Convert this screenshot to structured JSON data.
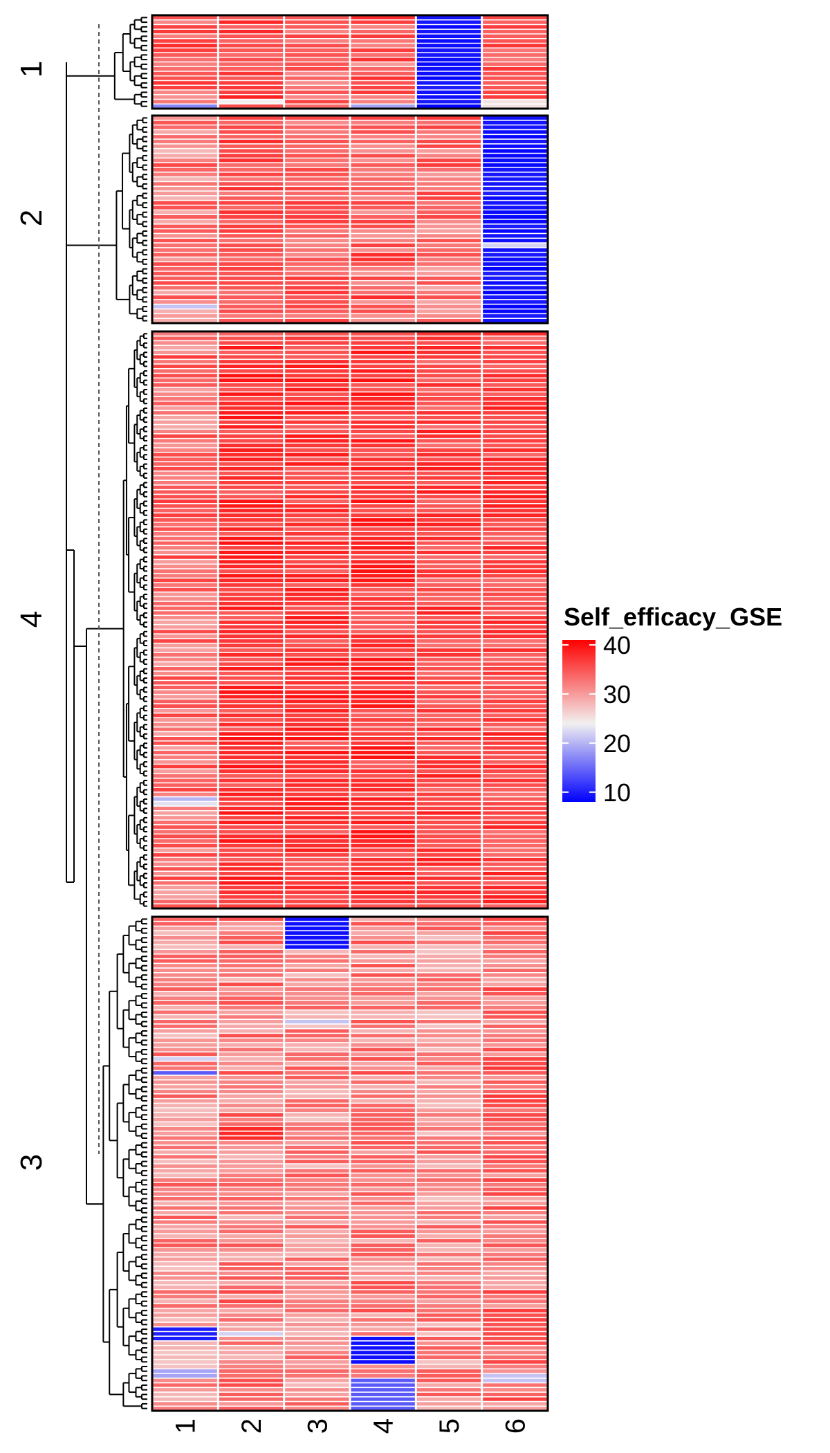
{
  "chart_data": {
    "type": "heatmap",
    "title": "",
    "legend": {
      "title": "Self_efficacy_GSE",
      "ticks": [
        10,
        20,
        30,
        40
      ],
      "range": [
        8,
        41
      ],
      "colors": {
        "low": "#0000FF",
        "mid": "#F2F0F0",
        "high": "#FF0000"
      },
      "mid_value": 24,
      "placement": "right"
    },
    "columns": [
      "1",
      "2",
      "3",
      "4",
      "5",
      "6"
    ],
    "clusters": [
      {
        "label": "1",
        "rows": 20,
        "col_means": [
          34,
          36,
          34,
          34,
          9,
          35
        ],
        "col_spread": [
          4,
          3,
          3,
          4,
          1,
          3
        ],
        "special": [
          {
            "rows": [
              19
            ],
            "col": 0,
            "value": 17
          },
          {
            "rows": [
              18
            ],
            "col": 1,
            "value": 24
          },
          {
            "rows": [
              19
            ],
            "col": 3,
            "value": 19
          },
          {
            "rows": [
              18,
              19
            ],
            "col": 5,
            "value": 25
          }
        ]
      },
      {
        "label": "2",
        "rows": 44,
        "col_means": [
          32,
          35,
          34,
          34,
          33,
          9
        ],
        "col_spread": [
          4,
          3,
          3,
          4,
          4,
          1
        ],
        "special": [
          {
            "rows": [
              27
            ],
            "col": 5,
            "value": 22
          },
          {
            "rows": [
              40
            ],
            "col": 0,
            "value": 21
          }
        ]
      },
      {
        "label": "4",
        "rows": 124,
        "col_means": [
          33,
          37,
          37,
          37,
          36,
          36
        ],
        "col_spread": [
          4,
          3,
          3,
          3,
          3,
          3
        ],
        "special": [
          {
            "rows": [
              100
            ],
            "col": 0,
            "value": 20
          },
          {
            "rows": [
              101
            ],
            "col": 0,
            "value": 23
          }
        ]
      },
      {
        "label": "3",
        "rows": 106,
        "col_means": [
          31,
          32,
          31,
          32,
          31,
          33
        ],
        "col_spread": [
          4,
          4,
          4,
          4,
          4,
          4
        ],
        "special": [
          {
            "rows": [
              0,
              1,
              2,
              3,
              4,
              5,
              6
            ],
            "col": 2,
            "value": 9
          },
          {
            "rows": [
              88,
              89,
              90
            ],
            "col": 0,
            "value": 10
          },
          {
            "rows": [
              33
            ],
            "col": 0,
            "value": 14
          },
          {
            "rows": [
              30
            ],
            "col": 0,
            "value": 22
          },
          {
            "rows": [
              97,
              98
            ],
            "col": 0,
            "value": 19
          },
          {
            "rows": [
              22
            ],
            "col": 2,
            "value": 21
          },
          {
            "rows": [
              89
            ],
            "col": 1,
            "value": 22
          },
          {
            "rows": [
              90,
              91,
              92,
              93,
              94,
              95
            ],
            "col": 3,
            "value": 9
          },
          {
            "rows": [
              99,
              100,
              101,
              102,
              103,
              104,
              105
            ],
            "col": 3,
            "value": 14
          },
          {
            "rows": [
              98,
              99
            ],
            "col": 5,
            "value": 21
          },
          {
            "rows": [
              45,
              46,
              47
            ],
            "col": 1,
            "value": 38
          }
        ]
      }
    ]
  }
}
